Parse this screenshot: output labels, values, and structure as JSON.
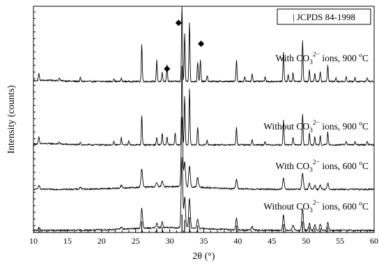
{
  "chart_data": {
    "type": "line",
    "xlabel": "2θ (°)",
    "ylabel": "Intensity (counts)",
    "xlim": [
      10,
      60
    ],
    "x_ticks": [
      10,
      15,
      20,
      25,
      30,
      35,
      40,
      45,
      50,
      55,
      60
    ],
    "grid": false,
    "legend": {
      "label": "| JCPDS 84-1998",
      "placement": "top-right"
    },
    "reference_pattern": {
      "name": "JCPDS 84-1998",
      "positions": [
        10.8,
        25.9,
        28.1,
        28.9,
        31.8,
        32.2,
        32.9,
        34.1,
        39.8,
        46.7,
        49.5,
        50.5,
        51.3,
        52.1,
        53.2
      ]
    },
    "series": [
      {
        "name": "With CO₃²⁻ ions, 900 °C",
        "label_parts": {
          "prefix": "With CO",
          "sub": "3",
          "sup": "2−",
          "suffix": " ions, 900 ",
          "degree": "o",
          "unit": "C"
        },
        "baseline": 0.0,
        "noise": 0.01,
        "peaks": [
          [
            10.8,
            0.09
          ],
          [
            13.8,
            0.04
          ],
          [
            16.9,
            0.05
          ],
          [
            21.8,
            0.04
          ],
          [
            22.9,
            0.04
          ],
          [
            25.9,
            0.47
          ],
          [
            28.1,
            0.27
          ],
          [
            28.9,
            0.11
          ],
          [
            29.6,
            0.22
          ],
          [
            31.8,
            1.0
          ],
          [
            32.2,
            0.62
          ],
          [
            32.9,
            0.76
          ],
          [
            34.1,
            0.25
          ],
          [
            34.5,
            0.27
          ],
          [
            35.5,
            0.08
          ],
          [
            39.8,
            0.27
          ],
          [
            41.0,
            0.06
          ],
          [
            42.1,
            0.1
          ],
          [
            44.0,
            0.06
          ],
          [
            46.7,
            0.38
          ],
          [
            47.4,
            0.09
          ],
          [
            48.1,
            0.12
          ],
          [
            49.5,
            0.52
          ],
          [
            50.5,
            0.14
          ],
          [
            51.3,
            0.11
          ],
          [
            52.1,
            0.13
          ],
          [
            53.2,
            0.21
          ],
          [
            54.4,
            0.05
          ],
          [
            55.9,
            0.06
          ],
          [
            57.2,
            0.05
          ],
          [
            59.0,
            0.05
          ]
        ]
      },
      {
        "name": "Without CO₃²⁻ ions, 900 °C",
        "label_parts": {
          "prefix": "Without CO",
          "sub": "3",
          "sup": "2−",
          "suffix": " ions, 900 ",
          "degree": "o",
          "unit": "C"
        },
        "baseline": 0.0,
        "noise": 0.01,
        "peaks": [
          [
            10.8,
            0.09
          ],
          [
            13.8,
            0.03
          ],
          [
            16.9,
            0.04
          ],
          [
            21.8,
            0.04
          ],
          [
            22.9,
            0.09
          ],
          [
            24.0,
            0.05
          ],
          [
            25.9,
            0.38
          ],
          [
            28.1,
            0.1
          ],
          [
            28.9,
            0.15
          ],
          [
            29.6,
            0.1
          ],
          [
            30.8,
            0.16
          ],
          [
            31.8,
            1.0
          ],
          [
            32.2,
            0.62
          ],
          [
            32.9,
            0.72
          ],
          [
            34.1,
            0.23
          ],
          [
            35.5,
            0.06
          ],
          [
            39.8,
            0.22
          ],
          [
            42.1,
            0.07
          ],
          [
            44.0,
            0.05
          ],
          [
            46.7,
            0.32
          ],
          [
            48.1,
            0.1
          ],
          [
            49.5,
            0.4
          ],
          [
            50.5,
            0.15
          ],
          [
            51.3,
            0.1
          ],
          [
            52.1,
            0.11
          ],
          [
            53.2,
            0.16
          ],
          [
            55.9,
            0.05
          ],
          [
            57.2,
            0.04
          ],
          [
            59.0,
            0.05
          ]
        ]
      },
      {
        "name": "With CO₃²⁻ ions, 600 °C",
        "label_parts": {
          "prefix": "With CO",
          "sub": "3",
          "sup": "2−",
          "suffix": " ions, 600 ",
          "degree": "o",
          "unit": "C"
        },
        "baseline": 0.0,
        "noise": 0.012,
        "peaks": [
          [
            10.8,
            0.06
          ],
          [
            16.9,
            0.03
          ],
          [
            22.9,
            0.04
          ],
          [
            25.9,
            0.26
          ],
          [
            28.1,
            0.06
          ],
          [
            28.9,
            0.08
          ],
          [
            31.8,
            1.0
          ],
          [
            32.2,
            0.35
          ],
          [
            32.9,
            0.3
          ],
          [
            34.1,
            0.14
          ],
          [
            39.8,
            0.13
          ],
          [
            46.7,
            0.16
          ],
          [
            49.5,
            0.23
          ],
          [
            50.5,
            0.08
          ],
          [
            51.3,
            0.06
          ],
          [
            52.1,
            0.06
          ],
          [
            53.2,
            0.09
          ]
        ]
      },
      {
        "name": "Without CO₃²⁻ ions, 600 °C",
        "label_parts": {
          "prefix": "Without CO",
          "sub": "3",
          "sup": "2−",
          "suffix": " ions, 600 ",
          "degree": "o",
          "unit": "C"
        },
        "baseline": 0.0,
        "noise": 0.012,
        "peaks": [
          [
            10.8,
            0.05
          ],
          [
            22.9,
            0.03
          ],
          [
            25.9,
            0.28
          ],
          [
            28.1,
            0.06
          ],
          [
            28.9,
            0.08
          ],
          [
            31.8,
            1.0
          ],
          [
            32.2,
            0.45
          ],
          [
            32.9,
            0.42
          ],
          [
            34.1,
            0.14
          ],
          [
            39.8,
            0.16
          ],
          [
            42.1,
            0.05
          ],
          [
            46.7,
            0.22
          ],
          [
            48.1,
            0.08
          ],
          [
            49.5,
            0.32
          ],
          [
            50.5,
            0.11
          ],
          [
            51.3,
            0.08
          ],
          [
            52.1,
            0.09
          ],
          [
            53.2,
            0.11
          ]
        ]
      }
    ],
    "markers": [
      {
        "symbol": "◆",
        "x": 29.6,
        "series": 0
      },
      {
        "symbol": "◆",
        "x": 31.3,
        "series": 0
      },
      {
        "symbol": "◆",
        "x": 34.6,
        "series": 0
      }
    ]
  }
}
